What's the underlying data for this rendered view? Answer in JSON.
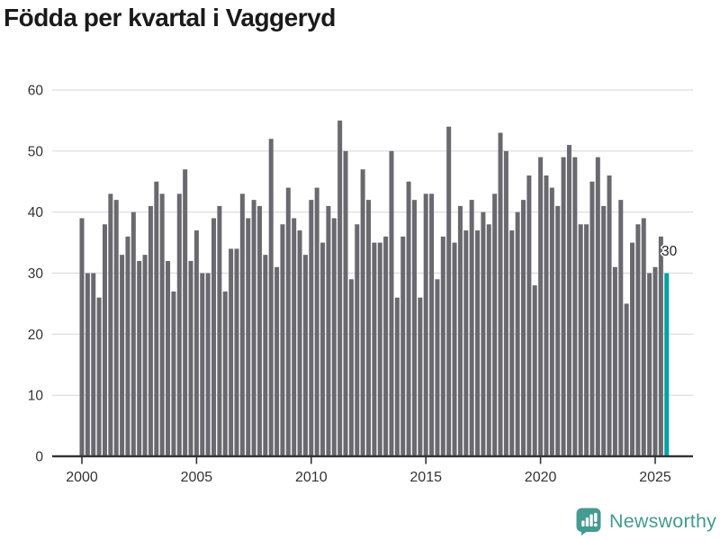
{
  "header": {
    "title": "Födda per kvartal i Vaggeryd"
  },
  "chart_data": {
    "type": "bar",
    "title": "Födda per kvartal i Vaggeryd",
    "xlabel": "",
    "ylabel": "",
    "frequency": "quarterly",
    "x_start": "2000-Q1",
    "x_end": "2025-Q3",
    "values": [
      39,
      30,
      30,
      26,
      38,
      43,
      42,
      33,
      36,
      40,
      32,
      33,
      41,
      45,
      43,
      32,
      27,
      43,
      47,
      32,
      37,
      30,
      30,
      39,
      41,
      27,
      34,
      34,
      43,
      39,
      42,
      41,
      33,
      52,
      31,
      38,
      44,
      39,
      37,
      33,
      42,
      44,
      35,
      41,
      39,
      55,
      50,
      29,
      38,
      47,
      42,
      35,
      35,
      36,
      50,
      26,
      36,
      45,
      42,
      26,
      43,
      43,
      29,
      36,
      54,
      35,
      41,
      37,
      42,
      37,
      40,
      38,
      43,
      53,
      50,
      37,
      40,
      42,
      46,
      28,
      49,
      46,
      44,
      41,
      49,
      51,
      49,
      38,
      38,
      45,
      49,
      41,
      46,
      31,
      42,
      25,
      35,
      38,
      39,
      30,
      31,
      36,
      30
    ],
    "years_per_row_note": "values listed 2000Q1..2025Q3 in order",
    "ylim": [
      0,
      60
    ],
    "yticks": [
      0,
      10,
      20,
      30,
      40,
      50,
      60
    ],
    "xticks": [
      "2000",
      "2005",
      "2010",
      "2015",
      "2020",
      "2025"
    ],
    "grid": true,
    "legend": false,
    "highlight_last_bar": true,
    "last_bar_label": "30"
  },
  "colors": {
    "background": "#ffffff",
    "title_text": "#1a1a1a",
    "axis_text": "#333333",
    "grid_line": "#e0e0e0",
    "axis_line": "#333333",
    "bar": "#69696f",
    "highlight_bar": "#00a2a2",
    "annotation_text": "#222222",
    "logo": "#459a92"
  },
  "logo": {
    "text": "Newsworthy",
    "icon": "newsworthy-speech-bubble-bar-chart-icon"
  }
}
